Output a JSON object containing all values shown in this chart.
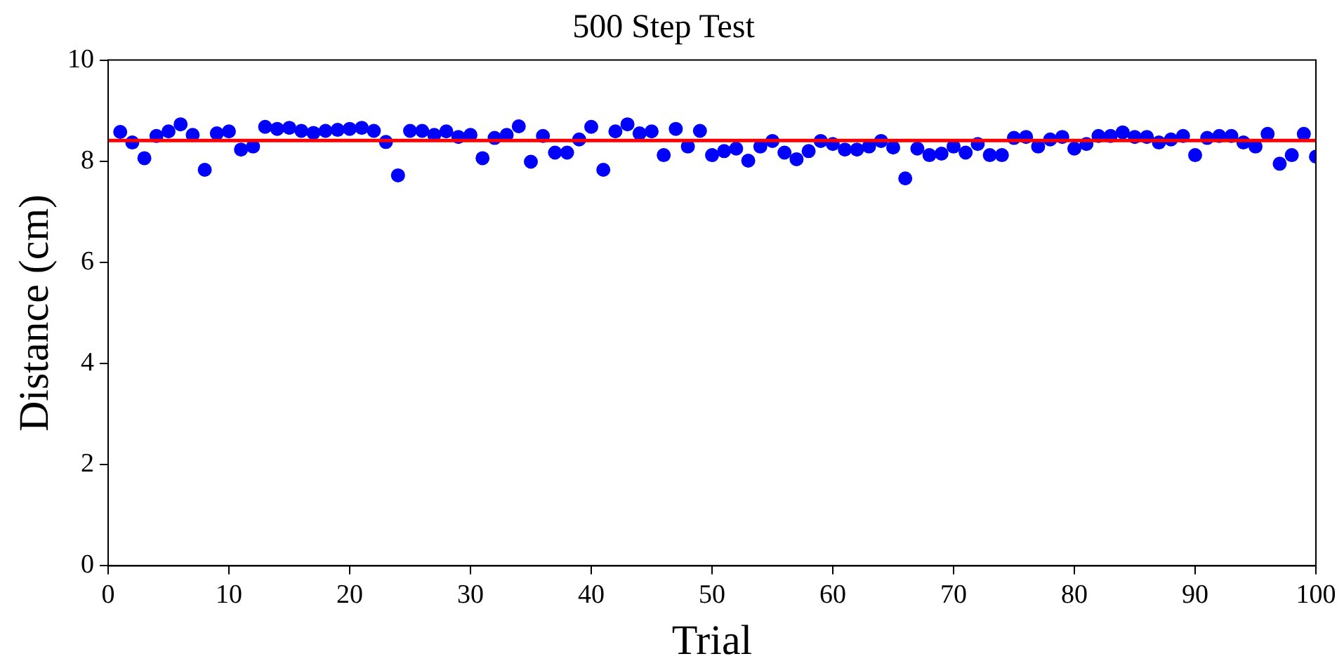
{
  "chart_data": {
    "type": "scatter",
    "title": "500 Step Test",
    "xlabel": "Trial",
    "ylabel": "Distance (cm)",
    "x": [
      1,
      2,
      3,
      4,
      5,
      6,
      7,
      8,
      9,
      10,
      11,
      12,
      13,
      14,
      15,
      16,
      17,
      18,
      19,
      20,
      21,
      22,
      23,
      24,
      25,
      26,
      27,
      28,
      29,
      30,
      31,
      32,
      33,
      34,
      35,
      36,
      37,
      38,
      39,
      40,
      41,
      42,
      43,
      44,
      45,
      46,
      47,
      48,
      49,
      50,
      51,
      52,
      53,
      54,
      55,
      56,
      57,
      58,
      59,
      60,
      61,
      62,
      63,
      64,
      65,
      66,
      67,
      68,
      69,
      70,
      71,
      72,
      73,
      74,
      75,
      76,
      77,
      78,
      79,
      80,
      81,
      82,
      83,
      84,
      85,
      86,
      87,
      88,
      89,
      90,
      91,
      92,
      93,
      94,
      95,
      96,
      97,
      98,
      99,
      100
    ],
    "series": [
      {
        "color": "#0000ff",
        "values": [
          8.58,
          8.37,
          8.06,
          8.5,
          8.59,
          8.73,
          8.52,
          7.83,
          8.55,
          8.59,
          8.23,
          8.29,
          8.68,
          8.64,
          8.66,
          8.6,
          8.56,
          8.6,
          8.62,
          8.64,
          8.66,
          8.6,
          8.38,
          7.72,
          8.6,
          8.6,
          8.52,
          8.59,
          8.48,
          8.52,
          8.06,
          8.46,
          8.52,
          8.69,
          7.99,
          8.5,
          8.17,
          8.17,
          8.43,
          8.68,
          7.83,
          8.59,
          8.73,
          8.55,
          8.59,
          8.12,
          8.64,
          8.29,
          8.6,
          8.12,
          8.2,
          8.25,
          8.01,
          8.29,
          8.4,
          8.17,
          8.04,
          8.2,
          8.4,
          8.34,
          8.23,
          8.23,
          8.29,
          8.4,
          8.27,
          7.66,
          8.25,
          8.12,
          8.15,
          8.29,
          8.17,
          8.34,
          8.12,
          8.12,
          8.46,
          8.48,
          8.29,
          8.43,
          8.48,
          8.25,
          8.34,
          8.5,
          8.5,
          8.57,
          8.48,
          8.48,
          8.37,
          8.43,
          8.5,
          8.12,
          8.46,
          8.5,
          8.5,
          8.37,
          8.29,
          8.54,
          7.95,
          8.12,
          8.54,
          8.09
        ]
      }
    ],
    "ref_lines": [
      {
        "axis": "y",
        "value": 8.41,
        "color": "#ff0000"
      }
    ],
    "xlim": [
      0,
      100
    ],
    "xticks": [
      0,
      10,
      20,
      30,
      40,
      50,
      60,
      70,
      80,
      90,
      100
    ],
    "ylim": [
      0,
      10
    ],
    "yticks": [
      0,
      2,
      4,
      6,
      8,
      10
    ],
    "grid": false,
    "legend": false,
    "marker": "circle"
  }
}
